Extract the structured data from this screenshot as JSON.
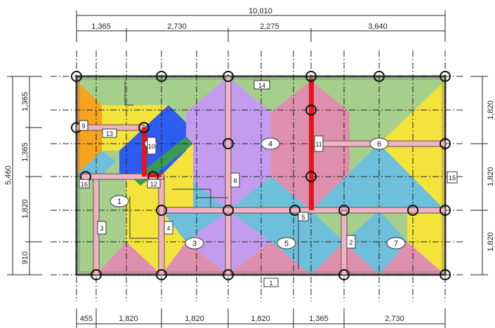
{
  "dimensions": {
    "top_total": "10,010",
    "top": [
      "1,365",
      "2,730",
      "2,275",
      "3,640"
    ],
    "left_total": "5,460",
    "left": [
      "1,365",
      "1,365",
      "1,820",
      "910"
    ],
    "right": [
      "1,820",
      "1,820",
      "1,820"
    ],
    "bottom": [
      "455",
      "1,820",
      "1,820",
      "1,820",
      "1,365",
      "2,730"
    ]
  },
  "region_labels": {
    "ovals": [
      "1",
      "3",
      "4",
      "5",
      "6",
      "7",
      "2"
    ],
    "boxes": [
      "14",
      "13",
      "11",
      "10",
      "8",
      "12",
      "5",
      "3",
      "4",
      "2",
      "1",
      "9",
      "15",
      "16"
    ]
  },
  "colors": {
    "green": "#a5cf8a",
    "pink": "#df8fae",
    "purple": "#c39cf0",
    "teal": "#6ebfdb",
    "yellow": "#f3e33a",
    "orange": "#f6a31d",
    "blue": "#2f5cf0",
    "darkgreen": "#3a9a55",
    "beam": "#f1b3c3",
    "red": "#e0161b"
  }
}
